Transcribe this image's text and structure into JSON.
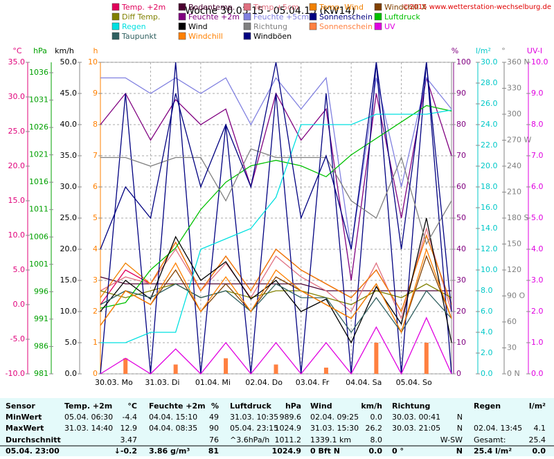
{
  "chart_data": {
    "type": "line",
    "title": "Woche 30.03.15 - 05.04.15 (KW14)",
    "copyright": "©2015 www.wetterstation-wechselburg.de",
    "xlim": [
      0,
      7
    ],
    "xticks": [
      {
        "value": 0,
        "label": "30.03. Mo"
      },
      {
        "value": 1,
        "label": "31.03. Di"
      },
      {
        "value": 2,
        "label": "01.04. Mi"
      },
      {
        "value": 3,
        "label": "02.04. Do"
      },
      {
        "value": 4,
        "label": "03.04. Fr"
      },
      {
        "value": 5,
        "label": "04.04. Sa"
      },
      {
        "value": 6,
        "label": "05.04. So"
      }
    ],
    "grid": true,
    "axes": [
      {
        "label": "°C",
        "color": "#e0007a",
        "lim": [
          -10,
          35
        ],
        "ticks": [
          {
            "value": -10,
            "label": "-10.0"
          },
          {
            "value": -5,
            "label": "-5.0"
          },
          {
            "value": 0,
            "label": "0.0"
          },
          {
            "value": 5,
            "label": "5.0"
          },
          {
            "value": 10,
            "label": "10.0"
          },
          {
            "value": 15,
            "label": "15.0"
          },
          {
            "value": 20,
            "label": "20.0"
          },
          {
            "value": 25,
            "label": "25.0"
          },
          {
            "value": 30,
            "label": "30.0"
          },
          {
            "value": 35,
            "label": "35.0"
          }
        ]
      },
      {
        "label": "hPa",
        "color": "#00a000",
        "lim": [
          981,
          1037.9
        ],
        "ticks": [
          981,
          986,
          991,
          996,
          1001,
          1006,
          1011,
          1016,
          1021,
          1026,
          1031,
          1036
        ]
      },
      {
        "label": "km/h",
        "color": "#000000",
        "lim": [
          0,
          50
        ],
        "ticks": [
          {
            "value": 0,
            "label": "0.0"
          },
          {
            "value": 5,
            "label": "5.0"
          },
          {
            "value": 10,
            "label": "10.0"
          },
          {
            "value": 15,
            "label": "15.0"
          },
          {
            "value": 20,
            "label": "20.0"
          },
          {
            "value": 25,
            "label": "25.0"
          },
          {
            "value": 30,
            "label": "30.0"
          },
          {
            "value": 35,
            "label": "35.0"
          },
          {
            "value": 40,
            "label": "40.0"
          },
          {
            "value": 45,
            "label": "45.0"
          },
          {
            "value": 50,
            "label": "50.0"
          }
        ]
      },
      {
        "label": "h",
        "color": "#ff8000",
        "lim": [
          0,
          10
        ],
        "ticks": [
          0,
          1,
          2,
          3,
          4,
          5,
          6,
          7,
          8,
          9,
          10
        ]
      },
      {
        "label": "%",
        "color": "#800080",
        "lim": [
          0,
          100
        ],
        "ticks": [
          0,
          10,
          20,
          30,
          40,
          50,
          60,
          70,
          80,
          90,
          100
        ]
      },
      {
        "label": "l/m²",
        "color": "#00c8c8",
        "lim": [
          0,
          30
        ],
        "ticks": [
          {
            "value": 0,
            "label": "0.0"
          },
          {
            "value": 2,
            "label": "2.0"
          },
          {
            "value": 4,
            "label": "4.0"
          },
          {
            "value": 6,
            "label": "6.0"
          },
          {
            "value": 8,
            "label": "8.0"
          },
          {
            "value": 10,
            "label": "10.0"
          },
          {
            "value": 12,
            "label": "12.0"
          },
          {
            "value": 14,
            "label": "14.0"
          },
          {
            "value": 16,
            "label": "16.0"
          },
          {
            "value": 18,
            "label": "18.0"
          },
          {
            "value": 20,
            "label": "20.0"
          },
          {
            "value": 22,
            "label": "22.0"
          },
          {
            "value": 24,
            "label": "24.0"
          },
          {
            "value": 26,
            "label": "26.0"
          },
          {
            "value": 28,
            "label": "28.0"
          },
          {
            "value": 30,
            "label": "30.0"
          }
        ]
      },
      {
        "label": "°",
        "color": "#808080",
        "lim": [
          0,
          360
        ],
        "ticks": [
          {
            "value": 0,
            "label": "0 N"
          },
          30,
          60,
          {
            "value": 90,
            "label": "90 O"
          },
          120,
          150,
          {
            "value": 180,
            "label": "180 S"
          },
          210,
          240,
          {
            "value": 270,
            "label": "270 W"
          },
          300,
          330,
          {
            "value": 360,
            "label": "360 N"
          }
        ]
      },
      {
        "label": "UV-I",
        "color": "#e000e0",
        "lim": [
          0,
          10
        ],
        "ticks": [
          {
            "value": 0,
            "label": "0.0"
          },
          {
            "value": 1,
            "label": "1.0"
          },
          {
            "value": 2,
            "label": "2.0"
          },
          {
            "value": 3,
            "label": "3.0"
          },
          {
            "value": 4,
            "label": "4.0"
          },
          {
            "value": 5,
            "label": "5.0"
          },
          {
            "value": 6,
            "label": "6.0"
          },
          {
            "value": 7,
            "label": "7.0"
          },
          {
            "value": 8,
            "label": "8.0"
          },
          {
            "value": 9,
            "label": "9.0"
          },
          {
            "value": 10,
            "label": "10.0"
          }
        ]
      }
    ],
    "x": [
      0,
      0.5,
      1,
      1.5,
      2,
      2.5,
      3,
      3.5,
      4,
      4.5,
      5,
      5.5,
      6,
      6.5,
      7
    ],
    "series": [
      {
        "name": "Temp. +2m",
        "color": "#e0005a",
        "axis": 0,
        "values": [
          0,
          5,
          3,
          9,
          2,
          7,
          2,
          8,
          5,
          3,
          1,
          5,
          -1,
          10,
          0
        ]
      },
      {
        "name": "Bodentemp.",
        "color": "#4b0030",
        "axis": 0,
        "values": [
          4,
          3,
          3,
          3,
          3,
          3,
          3,
          3,
          3,
          2,
          2,
          2,
          2,
          2,
          2
        ]
      },
      {
        "name": "Temp.+5cm",
        "color": "#e07080",
        "axis": 0,
        "values": [
          2,
          4,
          3,
          8,
          2,
          6,
          1,
          7,
          4,
          2,
          -1,
          6,
          -2,
          11,
          -1
        ]
      },
      {
        "name": "Temp. Wind",
        "color": "#f08000",
        "axis": 0,
        "values": [
          1,
          6,
          3,
          9,
          2,
          7,
          2,
          8,
          5,
          3,
          1,
          5,
          -1,
          10,
          0
        ]
      },
      {
        "name": "Windchill X",
        "color": "#804000",
        "axis": 0,
        "values": [
          -3,
          2,
          0,
          5,
          -1,
          3,
          -1,
          4,
          2,
          0,
          -2,
          3,
          -4,
          7,
          -2
        ]
      },
      {
        "name": "Diff Temp.",
        "color": "#808000",
        "axis": 0,
        "values": [
          2,
          1,
          2,
          3,
          1,
          2,
          1,
          2,
          2,
          1,
          0,
          2,
          1,
          3,
          1
        ]
      },
      {
        "name": "Feuchte +2m",
        "color": "#800080",
        "axis": 4,
        "values": [
          80,
          90,
          75,
          88,
          80,
          85,
          60,
          90,
          75,
          85,
          30,
          90,
          50,
          95,
          70
        ]
      },
      {
        "name": "Feuchte +5cm",
        "color": "#8080e0",
        "axis": 4,
        "values": [
          95,
          95,
          90,
          95,
          90,
          95,
          80,
          95,
          85,
          95,
          40,
          95,
          60,
          95,
          85
        ]
      },
      {
        "name": "Sonnenschein",
        "color": "#000080",
        "axis": 3,
        "values": [
          0,
          9,
          0,
          10,
          0,
          8,
          0,
          9,
          0,
          9,
          0,
          10,
          0,
          10,
          0
        ]
      },
      {
        "name": "Luftdruck",
        "color": "#00c000",
        "axis": 1,
        "values": [
          993,
          994,
          1000,
          1004,
          1011,
          1016,
          1019,
          1020,
          1019,
          1017,
          1021,
          1024,
          1027,
          1030,
          1029
        ]
      },
      {
        "name": "Regen",
        "color": "#00e0e0",
        "axis": 5,
        "values": [
          3,
          3,
          4,
          4,
          12,
          13,
          14,
          17,
          24,
          24,
          24,
          25,
          25,
          25,
          25.4
        ]
      },
      {
        "name": "Wind",
        "color": "#000000",
        "axis": 2,
        "values": [
          10,
          15,
          12,
          22,
          15,
          18,
          12,
          15,
          10,
          12,
          5,
          14,
          8,
          25,
          5
        ]
      },
      {
        "name": "Richtung",
        "color": "#808080",
        "axis": 6,
        "values": [
          250,
          250,
          240,
          250,
          250,
          200,
          260,
          250,
          250,
          250,
          200,
          180,
          250,
          150,
          200
        ]
      },
      {
        "name": "Sonnenschein",
        "color": "#ff8040",
        "axis": 3,
        "bars": true,
        "values": [
          0,
          0.5,
          0,
          0.3,
          0,
          0.5,
          0,
          0.3,
          0,
          0.2,
          0,
          1,
          0,
          1,
          0
        ]
      },
      {
        "name": "UV",
        "color": "#e000e0",
        "axis": 7,
        "values": [
          0,
          0.5,
          0,
          0.8,
          0,
          1,
          0,
          1,
          0,
          1,
          0,
          1.5,
          0,
          1.8,
          0
        ]
      },
      {
        "name": "Taupunkt",
        "color": "#306060",
        "axis": 0,
        "values": [
          0,
          2,
          1,
          3,
          1,
          2,
          -1,
          3,
          1,
          1,
          -4,
          1,
          -4,
          2,
          -2
        ]
      },
      {
        "name": "Windchill",
        "color": "#ff8000",
        "axis": 0,
        "values": [
          -3,
          2,
          0,
          6,
          -1,
          4,
          -1,
          5,
          2,
          0,
          -2,
          3,
          -4,
          8,
          -2
        ]
      },
      {
        "name": "Windböen",
        "color": "#000080",
        "axis": 2,
        "values": [
          20,
          30,
          25,
          45,
          30,
          40,
          30,
          50,
          25,
          35,
          20,
          50,
          20,
          50,
          10
        ]
      }
    ]
  },
  "table": {
    "rows": [
      [
        "Sensor",
        "Temp. +2m",
        "°C",
        "Feuchte +2m",
        "%",
        "Luftdruck",
        "hPa",
        "Wind",
        "km/h",
        "Richtung",
        null,
        "Regen",
        "l/m²"
      ],
      [
        "MinWert",
        "05.04. 06:30",
        "-4.4",
        "04.04. 15:10",
        "49",
        "31.03. 10:35",
        "989.6",
        "02.04. 09:25",
        "0.0",
        "30.03. 00:41",
        "N",
        null,
        null
      ],
      [
        "MaxWert",
        "31.03. 14:40",
        "12.9",
        "04.04. 08:35",
        "90",
        "05.04. 23:15",
        "1024.9",
        "31.03. 15:30",
        "26.2",
        "30.03. 21:05",
        "N",
        "02.04. 13:45",
        "4.1"
      ],
      [
        "Durchschnitt",
        null,
        "3.47",
        null,
        "76",
        "^3.6hPa/h",
        "1011.2",
        "1339.1 km",
        "8.0",
        null,
        "W-SW",
        "Gesamt:",
        "25.4"
      ],
      [
        "05.04. 23:00",
        null,
        "↓-0.2",
        "3.86 g/m³",
        "81",
        null,
        "1024.9",
        "0 Bft N",
        "0.0",
        "0 °",
        "N",
        "25.4 l/m²",
        "0.0"
      ]
    ]
  }
}
